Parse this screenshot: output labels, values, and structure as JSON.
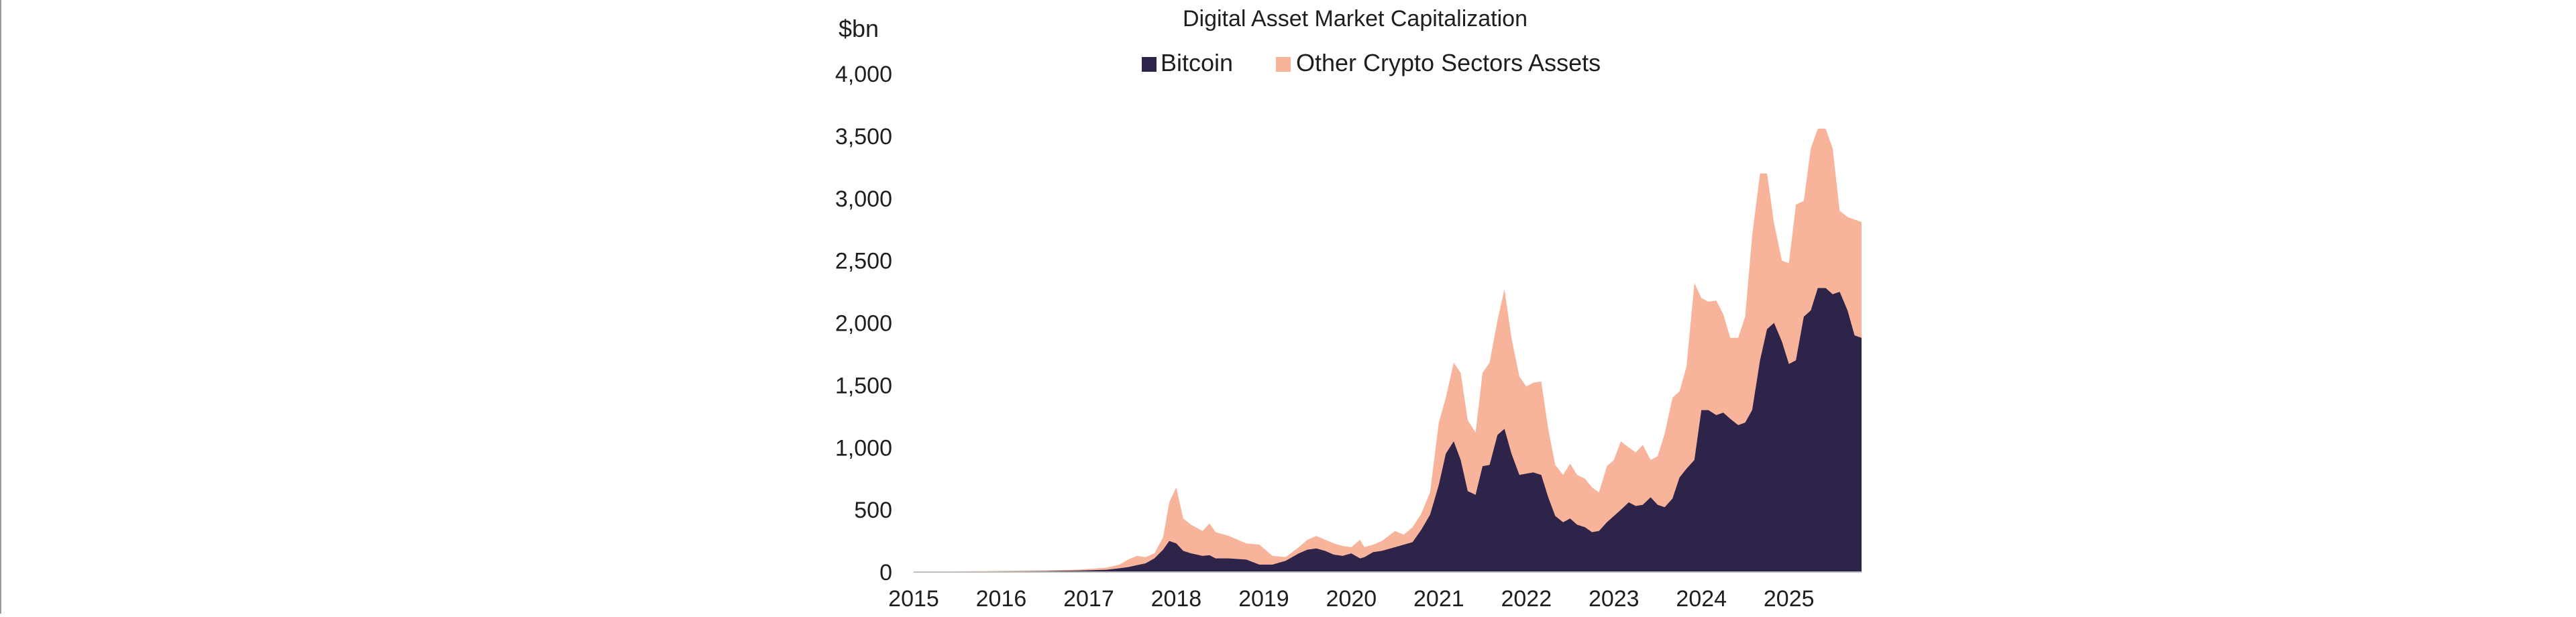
{
  "colors": {
    "bitcoin": "#2e2348",
    "other": "#f8b39b",
    "axis": "#bfbfbf",
    "text": "#1e1e1e"
  },
  "chart_data": {
    "type": "area",
    "stacked": true,
    "title": "Digital Asset Market Capitalization",
    "ylabel": "$bn",
    "xlabel": "",
    "ylim": [
      0,
      4000
    ],
    "xlim": [
      2015,
      2025.83
    ],
    "y_ticks": [
      0,
      500,
      1000,
      1500,
      2000,
      2500,
      3000,
      3500,
      4000
    ],
    "y_tick_labels": [
      "0",
      "500",
      "1,000",
      "1,500",
      "2,000",
      "2,500",
      "3,000",
      "3,500",
      "4,000"
    ],
    "x_ticks": [
      2015,
      2016,
      2017,
      2018,
      2019,
      2020,
      2021,
      2022,
      2023,
      2024,
      2025
    ],
    "x_tick_labels": [
      "2015",
      "2016",
      "2017",
      "2018",
      "2019",
      "2020",
      "2021",
      "2022",
      "2023",
      "2024",
      "2025"
    ],
    "legend_position": "top-center",
    "grid": false,
    "x": [
      2015.0,
      2015.5,
      2016.0,
      2016.5,
      2016.9,
      2017.2,
      2017.35,
      2017.45,
      2017.55,
      2017.65,
      2017.75,
      2017.85,
      2017.92,
      2018.0,
      2018.08,
      2018.17,
      2018.3,
      2018.38,
      2018.45,
      2018.6,
      2018.8,
      2018.95,
      2019.1,
      2019.25,
      2019.4,
      2019.5,
      2019.6,
      2019.7,
      2019.8,
      2019.9,
      2020.0,
      2020.1,
      2020.15,
      2020.25,
      2020.35,
      2020.5,
      2020.6,
      2020.7,
      2020.8,
      2020.9,
      2021.0,
      2021.08,
      2021.17,
      2021.25,
      2021.33,
      2021.42,
      2021.5,
      2021.58,
      2021.67,
      2021.75,
      2021.83,
      2021.92,
      2022.0,
      2022.08,
      2022.17,
      2022.25,
      2022.33,
      2022.42,
      2022.5,
      2022.58,
      2022.67,
      2022.75,
      2022.83,
      2022.92,
      2023.0,
      2023.08,
      2023.17,
      2023.25,
      2023.33,
      2023.42,
      2023.5,
      2023.58,
      2023.67,
      2023.75,
      2023.83,
      2023.92,
      2024.0,
      2024.08,
      2024.17,
      2024.25,
      2024.33,
      2024.42,
      2024.5,
      2024.58,
      2024.67,
      2024.75,
      2024.83,
      2024.92,
      2025.0,
      2025.08,
      2025.17,
      2025.25,
      2025.33,
      2025.42,
      2025.5,
      2025.58,
      2025.67,
      2025.75,
      2025.83
    ],
    "series": [
      {
        "name": "Bitcoin",
        "values": [
          3,
          4,
          6,
          8,
          12,
          18,
          30,
          40,
          55,
          70,
          110,
          180,
          250,
          230,
          170,
          150,
          130,
          135,
          110,
          110,
          100,
          60,
          60,
          90,
          150,
          180,
          190,
          170,
          140,
          130,
          150,
          110,
          120,
          160,
          170,
          200,
          220,
          240,
          340,
          460,
          700,
          950,
          1050,
          900,
          650,
          620,
          850,
          860,
          1100,
          1150,
          950,
          780,
          790,
          800,
          780,
          600,
          450,
          400,
          430,
          380,
          360,
          320,
          330,
          400,
          450,
          500,
          560,
          530,
          540,
          600,
          540,
          520,
          590,
          760,
          830,
          900,
          1300,
          1300,
          1260,
          1280,
          1230,
          1180,
          1200,
          1300,
          1700,
          1950,
          2000,
          1850,
          1670,
          1700,
          2050,
          2100,
          2280,
          2280,
          2230,
          2250,
          2100,
          1900,
          1880
        ],
        "totals": [
          4,
          6,
          9,
          12,
          20,
          35,
          60,
          100,
          130,
          120,
          150,
          280,
          560,
          680,
          430,
          380,
          330,
          390,
          320,
          290,
          230,
          220,
          130,
          120,
          200,
          260,
          290,
          260,
          230,
          210,
          200,
          260,
          200,
          220,
          250,
          330,
          300,
          360,
          470,
          640,
          1200,
          1400,
          1680,
          1600,
          1220,
          1120,
          1600,
          1680,
          2020,
          2270,
          1880,
          1570,
          1490,
          1520,
          1530,
          1150,
          860,
          780,
          870,
          780,
          750,
          680,
          640,
          850,
          900,
          1050,
          1000,
          960,
          1020,
          900,
          930,
          1110,
          1400,
          1450,
          1650,
          2320,
          2200,
          2170,
          2180,
          2070,
          1880,
          1880,
          2050,
          2700,
          3200,
          3200,
          2800,
          2500,
          2480,
          2950,
          2980,
          3400,
          3560,
          3560,
          3400,
          2900,
          2850,
          2830,
          2810
        ]
      },
      {
        "name": "Other Crypto Sectors Assets",
        "note_totals": "stacked on top of Bitcoin; totals listed in Bitcoin.totals"
      }
    ]
  }
}
